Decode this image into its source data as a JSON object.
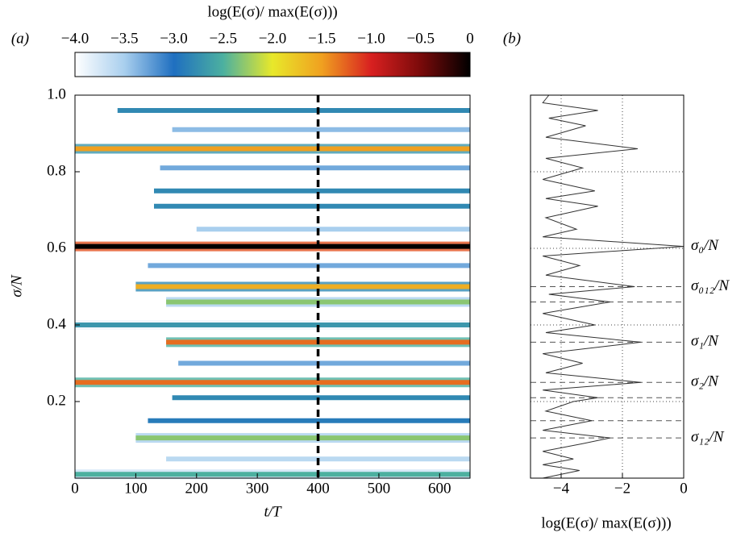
{
  "chart_data": [
    {
      "type": "heatmap",
      "panel_label": "(a)",
      "colorbar_label": "log(E(σ)/ max(E(σ)))",
      "colorbar_ticks": [
        {
          "value": -4,
          "label": "−4.0"
        },
        {
          "value": -3.5,
          "label": "−3.5"
        },
        {
          "value": -3,
          "label": "−3.0"
        },
        {
          "value": -2.5,
          "label": "−2.5"
        },
        {
          "value": -2,
          "label": "−2.0"
        },
        {
          "value": -1.5,
          "label": "−1.5"
        },
        {
          "value": -1,
          "label": "−1.0"
        },
        {
          "value": -0.5,
          "label": "−0.5"
        },
        0
      ],
      "colorbar_lim": [
        -4,
        0
      ],
      "colormap": [
        "#ffffff",
        "#a9cfee",
        "#1f6fc0",
        "#4cb0a0",
        "#e8e82a",
        "#f0a020",
        "#d82020",
        "#7a0a0a",
        "#000000"
      ],
      "x_label": "t/T",
      "y_label": "σ/N",
      "xlim": [
        0,
        650
      ],
      "xticks": [
        0,
        100,
        200,
        300,
        400,
        500,
        600
      ],
      "ylim": [
        0,
        1
      ],
      "yticks": [
        0.2,
        0.4,
        0.6,
        0.8,
        {
          "value": 1,
          "label": "1.0"
        }
      ],
      "vline": 400,
      "bands": {
        "y": [
          0.01,
          0.05,
          0.105,
          0.15,
          0.21,
          0.25,
          0.3,
          0.355,
          0.4,
          0.46,
          0.5,
          0.555,
          0.605,
          0.65,
          0.71,
          0.75,
          0.81,
          0.86,
          0.91,
          0.96
        ],
        "values": [
          -2.5,
          -3.6,
          -2.3,
          -2.9,
          -2.8,
          -1.3,
          -3.3,
          -1.3,
          -2.7,
          -2.3,
          -1.6,
          -3.3,
          0,
          -3.5,
          -2.8,
          -2.8,
          -3.3,
          -1.5,
          -3.4,
          -2.8
        ],
        "start": [
          0,
          150,
          100,
          120,
          160,
          0,
          170,
          150,
          0,
          150,
          100,
          120,
          0,
          200,
          130,
          130,
          140,
          0,
          160,
          70
        ]
      }
    },
    {
      "type": "line",
      "panel_label": "(b)",
      "x_label": "log(E(σ)/ max(E(σ)))",
      "color": "#333333",
      "xlim": [
        -5,
        0
      ],
      "xticks": [
        {
          "value": -4,
          "label": "−4"
        },
        {
          "value": -2,
          "label": "−2"
        },
        0
      ],
      "ylim": [
        0,
        1
      ],
      "ygrid": [
        0.2,
        0.4,
        0.6,
        0.8
      ],
      "sigma": [
        0,
        0.02,
        0.035,
        0.05,
        0.07,
        0.09,
        0.105,
        0.125,
        0.15,
        0.175,
        0.2,
        0.21,
        0.23,
        0.25,
        0.275,
        0.3,
        0.325,
        0.355,
        0.38,
        0.4,
        0.43,
        0.46,
        0.48,
        0.5,
        0.53,
        0.555,
        0.58,
        0.605,
        0.63,
        0.65,
        0.68,
        0.71,
        0.73,
        0.75,
        0.78,
        0.81,
        0.835,
        0.86,
        0.89,
        0.92,
        0.94,
        0.96,
        0.98,
        1.0
      ],
      "values": [
        -4.6,
        -3.4,
        -4.6,
        -3.6,
        -4.6,
        -3.3,
        -2.4,
        -4.6,
        -3.0,
        -4.5,
        -3.6,
        -2.8,
        -4.6,
        -1.4,
        -4.5,
        -3.3,
        -4.6,
        -1.4,
        -4.5,
        -2.9,
        -4.6,
        -2.4,
        -4.4,
        -1.6,
        -4.5,
        -3.4,
        -4.6,
        0,
        -4.6,
        -3.5,
        -4.5,
        -2.8,
        -4.5,
        -2.9,
        -4.6,
        -3.3,
        -4.5,
        -1.5,
        -4.5,
        -3.2,
        -4.4,
        -2.8,
        -4.6,
        -4.4
      ],
      "hlines": [
        0.5,
        0.46,
        0.355,
        0.25,
        0.21,
        0.15,
        0.105
      ],
      "annotations": [
        {
          "text": "σ₀/N",
          "y": 0.605
        },
        {
          "text": "σ₀₁₂/N",
          "y": 0.5
        },
        {
          "text": "σ₁/N",
          "y": 0.355
        },
        {
          "text": "σ₂/N",
          "y": 0.25
        },
        {
          "text": "σ₁₂/N",
          "y": 0.105
        }
      ]
    }
  ]
}
